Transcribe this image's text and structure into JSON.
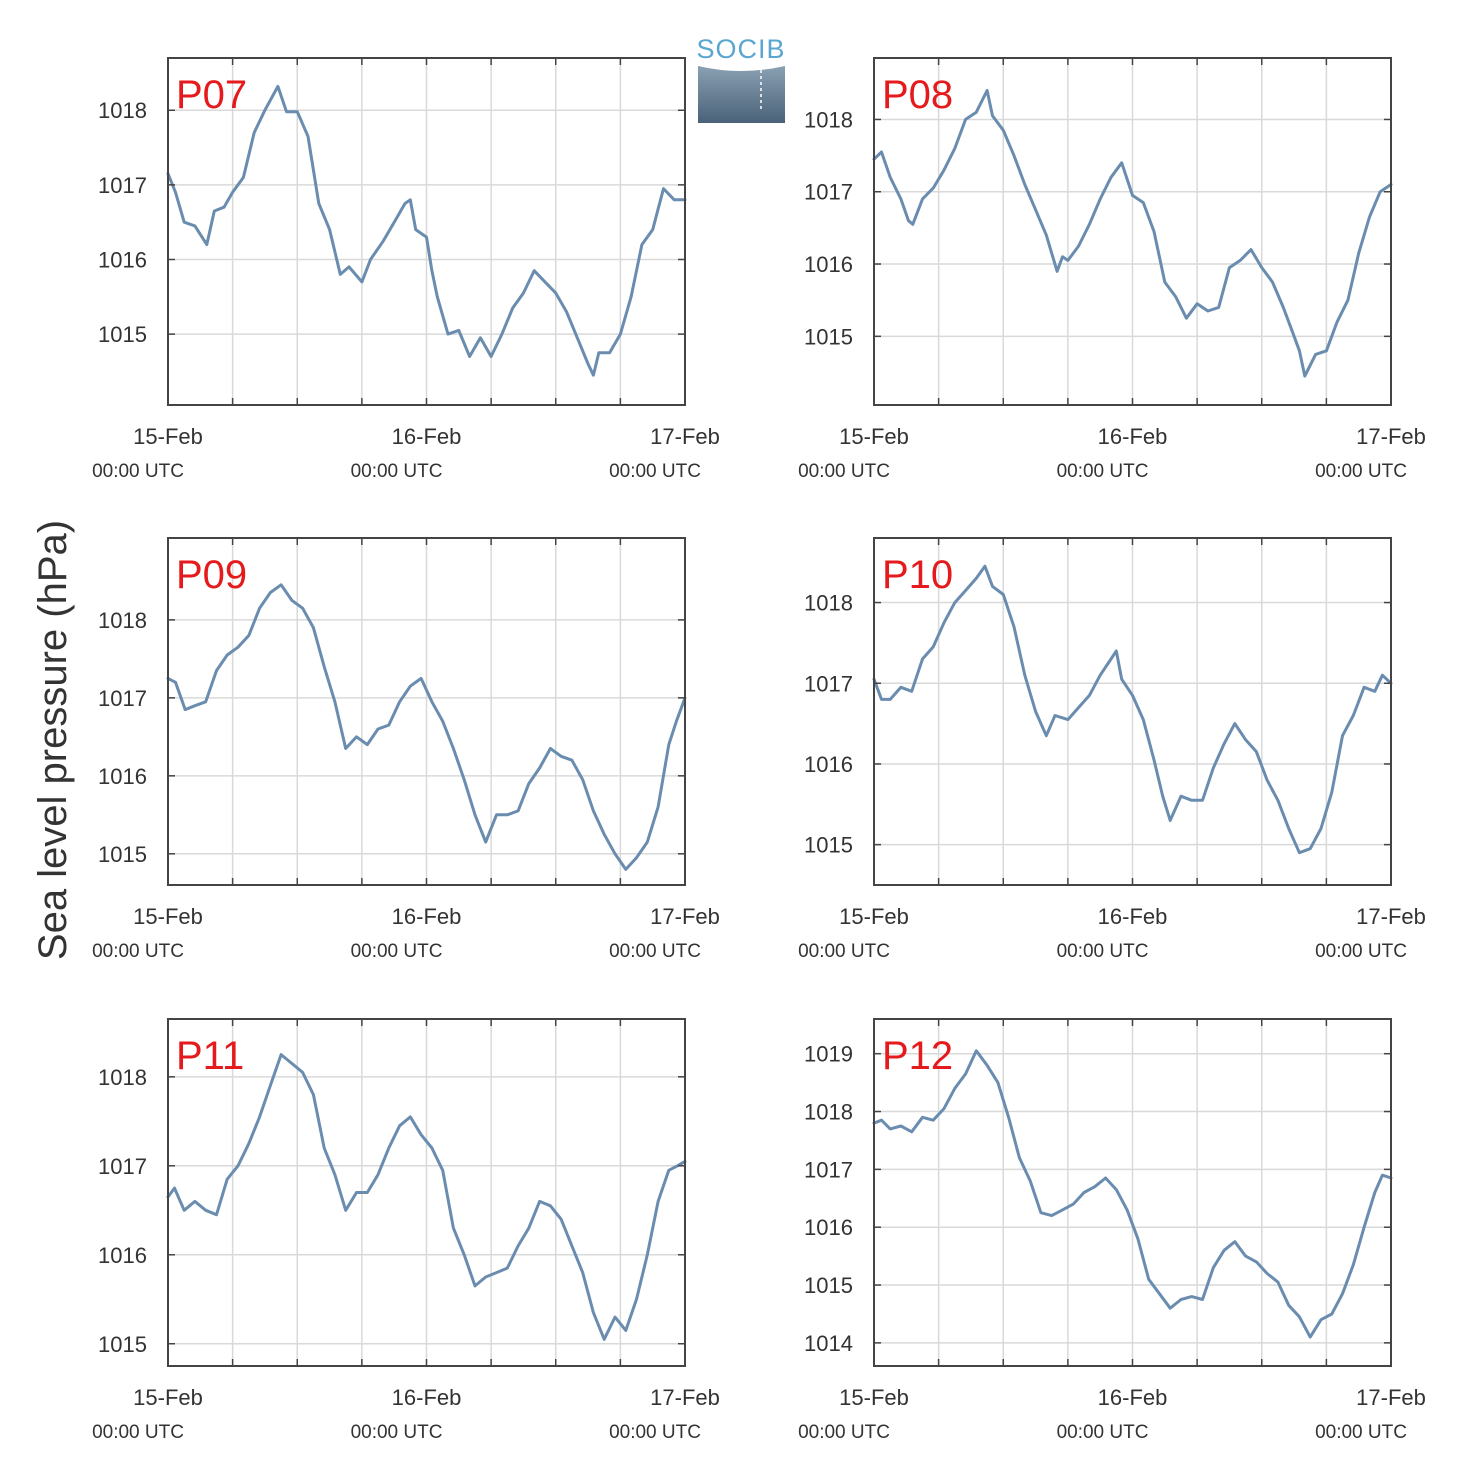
{
  "figure": {
    "ylabel": "Sea level pressure (hPa)",
    "logo": {
      "text": "SOCIB",
      "text_color": "#5aa6d0",
      "gradient_top": "#8aa0b3",
      "gradient_bottom": "#4a6278"
    },
    "line_color": "#6a8caf",
    "label_color": "#e41a1c",
    "grid_color": "#d9d9d9",
    "axis_color": "#444444"
  },
  "chart_data": [
    {
      "type": "line",
      "name": "P07",
      "xlim": [
        0,
        48
      ],
      "ylim": [
        1014.05,
        1018.7
      ],
      "yticks": [
        1015,
        1016,
        1017,
        1018
      ],
      "xticks": [
        {
          "x": 0,
          "label": "15-Feb",
          "sub": "00:00 UTC"
        },
        {
          "x": 24,
          "label": "16-Feb",
          "sub": "00:00 UTC"
        },
        {
          "x": 48,
          "label": "17-Feb",
          "sub": "00:00 UTC"
        }
      ],
      "x": [
        0,
        0.7,
        1.5,
        2.5,
        3.6,
        4.3,
        5.2,
        6,
        7,
        8,
        9,
        10.2,
        11,
        12,
        13,
        14,
        15,
        16,
        16.8,
        18,
        18.8,
        20,
        21,
        22,
        22.5,
        23,
        24,
        24.5,
        25,
        26,
        27,
        28,
        29,
        30,
        31,
        32,
        33,
        34,
        35,
        36,
        37,
        38,
        39,
        39.5,
        40,
        41,
        42,
        43,
        44,
        45,
        46,
        47,
        48
      ],
      "values": [
        1017.15,
        1016.9,
        1016.5,
        1016.45,
        1016.2,
        1016.65,
        1016.7,
        1016.9,
        1017.1,
        1017.7,
        1018.0,
        1018.32,
        1017.98,
        1017.98,
        1017.65,
        1016.75,
        1016.4,
        1015.8,
        1015.9,
        1015.7,
        1016.0,
        1016.25,
        1016.5,
        1016.75,
        1016.8,
        1016.4,
        1016.3,
        1015.85,
        1015.5,
        1015.0,
        1015.05,
        1014.7,
        1014.95,
        1014.7,
        1015.0,
        1015.35,
        1015.55,
        1015.85,
        1015.7,
        1015.55,
        1015.3,
        1014.95,
        1014.6,
        1014.45,
        1014.75,
        1014.75,
        1015.0,
        1015.5,
        1016.2,
        1016.4,
        1016.95,
        1016.8,
        1016.8
      ]
    },
    {
      "type": "line",
      "name": "P08",
      "xlim": [
        0,
        48
      ],
      "ylim": [
        1014.05,
        1018.85
      ],
      "yticks": [
        1015,
        1016,
        1017,
        1018
      ],
      "xticks": [
        {
          "x": 0,
          "label": "15-Feb",
          "sub": "00:00 UTC"
        },
        {
          "x": 24,
          "label": "16-Feb",
          "sub": "00:00 UTC"
        },
        {
          "x": 48,
          "label": "17-Feb",
          "sub": "00:00 UTC"
        }
      ],
      "x": [
        0,
        0.7,
        1.5,
        2.5,
        3.2,
        3.6,
        4.5,
        5.5,
        6.5,
        7.5,
        8.5,
        9.5,
        10.5,
        11,
        12,
        13,
        14,
        15,
        16,
        17,
        17.5,
        18,
        19,
        20,
        21,
        22,
        23,
        24,
        25,
        26,
        27,
        28,
        29,
        30,
        31,
        32,
        33,
        34,
        35,
        36,
        37,
        38,
        39,
        39.5,
        40,
        41,
        42,
        43,
        44,
        45,
        46,
        47,
        48
      ],
      "values": [
        1017.45,
        1017.55,
        1017.2,
        1016.9,
        1016.6,
        1016.55,
        1016.9,
        1017.05,
        1017.3,
        1017.6,
        1018.0,
        1018.1,
        1018.4,
        1018.05,
        1017.85,
        1017.5,
        1017.1,
        1016.75,
        1016.4,
        1015.9,
        1016.1,
        1016.05,
        1016.25,
        1016.55,
        1016.9,
        1017.2,
        1017.4,
        1016.95,
        1016.85,
        1016.45,
        1015.75,
        1015.55,
        1015.25,
        1015.45,
        1015.35,
        1015.4,
        1015.95,
        1016.05,
        1016.2,
        1015.95,
        1015.75,
        1015.4,
        1015.0,
        1014.8,
        1014.45,
        1014.75,
        1014.8,
        1015.2,
        1015.5,
        1016.15,
        1016.65,
        1017.0,
        1017.1
      ]
    },
    {
      "type": "line",
      "name": "P09",
      "xlim": [
        0,
        48
      ],
      "ylim": [
        1014.6,
        1019.05
      ],
      "yticks": [
        1015,
        1016,
        1017,
        1018
      ],
      "xticks": [
        {
          "x": 0,
          "label": "15-Feb",
          "sub": "00:00 UTC"
        },
        {
          "x": 24,
          "label": "16-Feb",
          "sub": "00:00 UTC"
        },
        {
          "x": 48,
          "label": "17-Feb",
          "sub": "00:00 UTC"
        }
      ],
      "x": [
        0,
        0.7,
        1.6,
        2.5,
        3.5,
        4.5,
        5.5,
        6.5,
        7.5,
        8.5,
        9.5,
        10.5,
        11.5,
        12.5,
        13.5,
        14.5,
        15.5,
        16.5,
        17.5,
        18.5,
        19.5,
        20.5,
        21.5,
        22.5,
        23.5,
        24.5,
        25.5,
        26.5,
        27.5,
        28.5,
        29.5,
        30.5,
        31.5,
        32.5,
        33.5,
        34.5,
        35.5,
        36.5,
        37.5,
        38.5,
        39.5,
        40.5,
        41.5,
        42.5,
        43.5,
        44.5,
        45.5,
        46.5,
        47.2,
        48
      ],
      "values": [
        1017.25,
        1017.2,
        1016.85,
        1016.9,
        1016.95,
        1017.35,
        1017.55,
        1017.65,
        1017.8,
        1018.15,
        1018.35,
        1018.45,
        1018.25,
        1018.15,
        1017.9,
        1017.4,
        1016.95,
        1016.35,
        1016.5,
        1016.4,
        1016.6,
        1016.65,
        1016.95,
        1017.15,
        1017.25,
        1016.95,
        1016.7,
        1016.35,
        1015.95,
        1015.5,
        1015.15,
        1015.5,
        1015.5,
        1015.55,
        1015.9,
        1016.1,
        1016.35,
        1016.25,
        1016.2,
        1015.95,
        1015.55,
        1015.25,
        1015.0,
        1014.8,
        1014.95,
        1015.15,
        1015.6,
        1016.4,
        1016.7,
        1017.0
      ]
    },
    {
      "type": "line",
      "name": "P10",
      "xlim": [
        0,
        48
      ],
      "ylim": [
        1014.5,
        1018.8
      ],
      "yticks": [
        1015,
        1016,
        1017,
        1018
      ],
      "xticks": [
        {
          "x": 0,
          "label": "15-Feb",
          "sub": "00:00 UTC"
        },
        {
          "x": 24,
          "label": "16-Feb",
          "sub": "00:00 UTC"
        },
        {
          "x": 48,
          "label": "17-Feb",
          "sub": "00:00 UTC"
        }
      ],
      "x": [
        0,
        0.7,
        1.5,
        2.5,
        3.5,
        4.5,
        5.5,
        6.5,
        7.5,
        8.5,
        9.5,
        10.3,
        11,
        12,
        13,
        14,
        15,
        16,
        16.8,
        18,
        19,
        20,
        21,
        22,
        22.5,
        23,
        24,
        25,
        26,
        26.8,
        27.5,
        28.5,
        29.5,
        30.5,
        31.5,
        32.5,
        33.5,
        34.5,
        35.5,
        36.5,
        37.5,
        38.5,
        39.5,
        40.5,
        41.5,
        42.5,
        43.5,
        44.5,
        45.5,
        46.5,
        47.2,
        48
      ],
      "values": [
        1017.05,
        1016.8,
        1016.8,
        1016.95,
        1016.9,
        1017.3,
        1017.45,
        1017.75,
        1018.0,
        1018.15,
        1018.3,
        1018.45,
        1018.2,
        1018.1,
        1017.7,
        1017.1,
        1016.65,
        1016.35,
        1016.6,
        1016.55,
        1016.7,
        1016.85,
        1017.1,
        1017.3,
        1017.4,
        1017.05,
        1016.85,
        1016.55,
        1016.05,
        1015.6,
        1015.3,
        1015.6,
        1015.55,
        1015.55,
        1015.95,
        1016.25,
        1016.5,
        1016.3,
        1016.15,
        1015.8,
        1015.55,
        1015.2,
        1014.9,
        1014.95,
        1015.2,
        1015.65,
        1016.35,
        1016.6,
        1016.95,
        1016.9,
        1017.1,
        1017.0
      ]
    },
    {
      "type": "line",
      "name": "P11",
      "xlim": [
        0,
        48
      ],
      "ylim": [
        1014.75,
        1018.65
      ],
      "yticks": [
        1015,
        1016,
        1017,
        1018
      ],
      "xticks": [
        {
          "x": 0,
          "label": "15-Feb",
          "sub": "00:00 UTC"
        },
        {
          "x": 24,
          "label": "16-Feb",
          "sub": "00:00 UTC"
        },
        {
          "x": 48,
          "label": "17-Feb",
          "sub": "00:00 UTC"
        }
      ],
      "x": [
        0,
        0.6,
        1.5,
        2.5,
        3.5,
        4.5,
        5.5,
        6.5,
        7.5,
        8.5,
        9.5,
        10.5,
        11.5,
        12.5,
        13.5,
        14.5,
        15.5,
        16.5,
        17.5,
        18.5,
        19.5,
        20.5,
        21.5,
        22.5,
        23.5,
        24.5,
        25.5,
        26.5,
        27.5,
        28.5,
        29.5,
        30.5,
        31.5,
        32.5,
        33.5,
        34.5,
        35.5,
        36.5,
        37.5,
        38.5,
        39.5,
        40.5,
        41.5,
        42.5,
        43.5,
        44.5,
        45.5,
        46.5,
        47.3,
        48
      ],
      "values": [
        1016.65,
        1016.75,
        1016.5,
        1016.6,
        1016.5,
        1016.45,
        1016.85,
        1017.0,
        1017.25,
        1017.55,
        1017.9,
        1018.25,
        1018.15,
        1018.05,
        1017.8,
        1017.2,
        1016.9,
        1016.5,
        1016.7,
        1016.7,
        1016.9,
        1017.2,
        1017.45,
        1017.55,
        1017.35,
        1017.2,
        1016.95,
        1016.3,
        1016.0,
        1015.65,
        1015.75,
        1015.8,
        1015.85,
        1016.1,
        1016.3,
        1016.6,
        1016.55,
        1016.4,
        1016.1,
        1015.8,
        1015.35,
        1015.05,
        1015.3,
        1015.15,
        1015.5,
        1016.0,
        1016.6,
        1016.95,
        1017.0,
        1017.05
      ]
    },
    {
      "type": "line",
      "name": "P12",
      "xlim": [
        0,
        48
      ],
      "ylim": [
        1013.6,
        1019.6
      ],
      "yticks": [
        1014,
        1015,
        1016,
        1017,
        1018,
        1019
      ],
      "xticks": [
        {
          "x": 0,
          "label": "15-Feb",
          "sub": "00:00 UTC"
        },
        {
          "x": 24,
          "label": "16-Feb",
          "sub": "00:00 UTC"
        },
        {
          "x": 48,
          "label": "17-Feb",
          "sub": "00:00 UTC"
        }
      ],
      "x": [
        0,
        0.7,
        1.5,
        2.5,
        3.5,
        4.5,
        5.5,
        6.5,
        7.5,
        8.5,
        9.5,
        10.5,
        11.5,
        12.5,
        13.5,
        14.5,
        15.5,
        16.5,
        17.5,
        18.5,
        19.5,
        20.5,
        21.5,
        22.5,
        23.5,
        24.5,
        25.5,
        26.5,
        27.5,
        28.5,
        29.5,
        30.5,
        31.5,
        32.5,
        33.5,
        34.5,
        35.5,
        36.5,
        37.5,
        38.5,
        39.5,
        40.5,
        41.5,
        42.5,
        43.5,
        44.5,
        45.5,
        46.5,
        47.2,
        48
      ],
      "values": [
        1017.8,
        1017.85,
        1017.7,
        1017.75,
        1017.65,
        1017.9,
        1017.85,
        1018.05,
        1018.4,
        1018.65,
        1019.05,
        1018.8,
        1018.5,
        1017.9,
        1017.2,
        1016.8,
        1016.25,
        1016.2,
        1016.3,
        1016.4,
        1016.6,
        1016.7,
        1016.85,
        1016.65,
        1016.3,
        1015.8,
        1015.1,
        1014.85,
        1014.6,
        1014.75,
        1014.8,
        1014.75,
        1015.3,
        1015.6,
        1015.75,
        1015.5,
        1015.4,
        1015.2,
        1015.05,
        1014.65,
        1014.45,
        1014.1,
        1014.4,
        1014.5,
        1014.85,
        1015.35,
        1016.0,
        1016.6,
        1016.9,
        1016.85
      ]
    }
  ]
}
